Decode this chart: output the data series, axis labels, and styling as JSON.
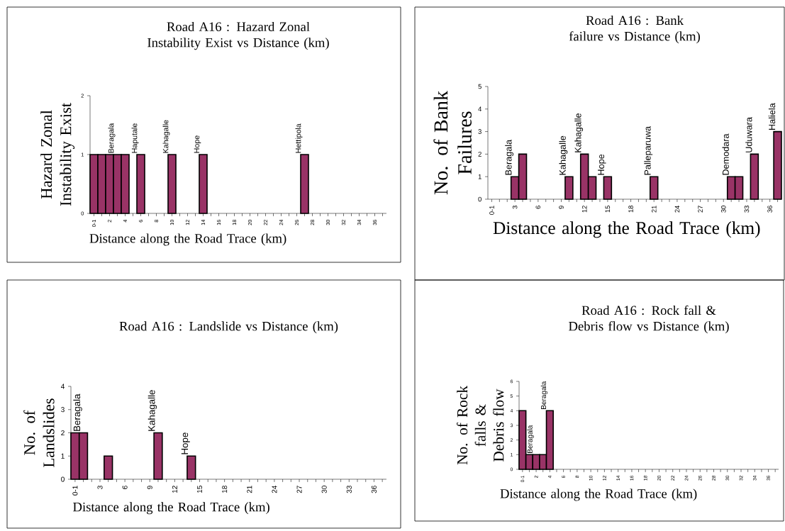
{
  "chart_data": [
    {
      "type": "bar",
      "title": "Road A16 : Hazard Zonal Instability Exist vs Distance (km)",
      "xlabel": "Distance along the Road Trace (km)",
      "ylabel": "Hazard Zonal Instability Exist",
      "color": "#993366",
      "categories": [
        "0-1",
        null,
        "2",
        null,
        "4",
        null,
        "6",
        null,
        "8",
        null,
        "10",
        null,
        "12",
        null,
        "14",
        null,
        "16",
        null,
        "18",
        null,
        "20",
        null,
        "22",
        null,
        "24",
        null,
        "26",
        null,
        "28",
        null,
        "30",
        null,
        "32",
        null,
        "34",
        null,
        "36",
        null
      ],
      "values": [
        1,
        1,
        1,
        1,
        1,
        null,
        1,
        null,
        null,
        null,
        1,
        null,
        null,
        null,
        1,
        null,
        null,
        null,
        null,
        null,
        null,
        null,
        null,
        null,
        null,
        null,
        null,
        1,
        null,
        null,
        null,
        null,
        null,
        null,
        null,
        null,
        null,
        null
      ],
      "value_labels": [
        null,
        null,
        null,
        "Beragala",
        null,
        null,
        "Haputale",
        null,
        null,
        null,
        "Kahagalle",
        null,
        null,
        null,
        "Hope",
        null,
        null,
        null,
        null,
        null,
        null,
        null,
        null,
        null,
        null,
        null,
        null,
        "Hettipola",
        null,
        null,
        null,
        null,
        null,
        null,
        null,
        null,
        null,
        null
      ],
      "ylim": [
        0,
        2
      ],
      "yticks": [
        0,
        1,
        2
      ]
    },
    {
      "type": "bar",
      "title": "Road A16 : Bank failure vs Distance (km)",
      "xlabel": "Distance along the Road Trace (km)",
      "ylabel": "No. of Bank Failures",
      "color": "#993366",
      "categories": [
        "0-1",
        null,
        null,
        "3",
        null,
        null,
        "6",
        null,
        null,
        "9",
        null,
        null,
        "12",
        null,
        null,
        "15",
        null,
        null,
        "18",
        null,
        null,
        "21",
        null,
        null,
        "24",
        null,
        null,
        "27",
        null,
        null,
        "30",
        null,
        null,
        "33",
        null,
        null,
        "36",
        null
      ],
      "values": [
        null,
        null,
        null,
        1,
        2,
        null,
        null,
        null,
        null,
        null,
        1,
        null,
        2,
        1,
        null,
        1,
        null,
        null,
        null,
        null,
        null,
        1,
        null,
        null,
        null,
        null,
        null,
        null,
        null,
        null,
        null,
        1,
        1,
        null,
        2,
        null,
        null,
        3
      ],
      "value_labels": [
        null,
        null,
        null,
        "Beragala",
        null,
        null,
        null,
        null,
        null,
        null,
        "Kahagalle",
        null,
        "Kahagalle",
        null,
        null,
        "Hope",
        null,
        null,
        null,
        null,
        null,
        "Palleparuwa",
        null,
        null,
        null,
        null,
        null,
        null,
        null,
        null,
        null,
        "Demodara",
        null,
        null,
        "Uduwara",
        null,
        null,
        "Haliela"
      ],
      "ylim": [
        0,
        5
      ],
      "yticks": [
        0,
        1,
        2,
        3,
        4,
        5
      ]
    },
    {
      "type": "bar",
      "title": "Road A16 : Landslide vs Distance (km)",
      "xlabel": "Distance along the Road Trace (km)",
      "ylabel": "No. of Landslides",
      "color": "#993366",
      "categories": [
        "0-1",
        null,
        null,
        "3",
        null,
        null,
        "6",
        null,
        null,
        "9",
        null,
        null,
        "12",
        null,
        null,
        "15",
        null,
        null,
        "18",
        null,
        null,
        "21",
        null,
        null,
        "24",
        null,
        null,
        "27",
        null,
        null,
        "30",
        null,
        null,
        "33",
        null,
        null,
        "36",
        null
      ],
      "values": [
        2,
        2,
        null,
        null,
        1,
        null,
        null,
        null,
        null,
        null,
        2,
        null,
        null,
        null,
        1,
        null,
        null,
        null,
        null,
        null,
        null,
        null,
        null,
        null,
        null,
        null,
        null,
        null,
        null,
        null,
        null,
        null,
        null,
        null,
        null,
        null,
        null,
        null
      ],
      "value_labels": [
        null,
        "Beragala",
        null,
        null,
        null,
        null,
        null,
        null,
        null,
        null,
        "Kahagalle",
        null,
        null,
        null,
        "Hope",
        null,
        null,
        null,
        null,
        null,
        null,
        null,
        null,
        null,
        null,
        null,
        null,
        null,
        null,
        null,
        null,
        null,
        null,
        null,
        null,
        null,
        null,
        null
      ],
      "ylim": [
        0,
        4
      ],
      "yticks": [
        0,
        1,
        2,
        3,
        4
      ]
    },
    {
      "type": "bar",
      "title": "Road A16 : Rock fall & Debris flow vs Distance (km)",
      "xlabel": "Distance along the Road Trace (km)",
      "ylabel": "No. of Rock falls & Debris flow",
      "color": "#993366",
      "categories": [
        "0-1",
        null,
        "2",
        null,
        "4",
        null,
        "6",
        null,
        "8",
        null,
        "10",
        null,
        "12",
        null,
        "14",
        null,
        "16",
        null,
        "18",
        null,
        "20",
        null,
        "22",
        null,
        "24",
        null,
        "26",
        null,
        "28",
        null,
        "30",
        null,
        "32",
        null,
        "34",
        null,
        "36",
        null
      ],
      "values": [
        4,
        1,
        1,
        1,
        4,
        null,
        null,
        null,
        null,
        null,
        null,
        null,
        null,
        null,
        null,
        null,
        null,
        null,
        null,
        null,
        null,
        null,
        null,
        null,
        null,
        null,
        null,
        null,
        null,
        null,
        null,
        null,
        null,
        null,
        null,
        null,
        null,
        null
      ],
      "value_labels": [
        null,
        null,
        "Beragala",
        null,
        "Beragala",
        null,
        null,
        null,
        null,
        null,
        null,
        null,
        null,
        null,
        null,
        null,
        null,
        null,
        null,
        null,
        null,
        null,
        null,
        null,
        null,
        null,
        null,
        null,
        null,
        null,
        null,
        null,
        null,
        null,
        null,
        null,
        null,
        null
      ],
      "ylim": [
        0,
        6
      ],
      "yticks": [
        0,
        1,
        2,
        3,
        4,
        5,
        6
      ]
    }
  ]
}
